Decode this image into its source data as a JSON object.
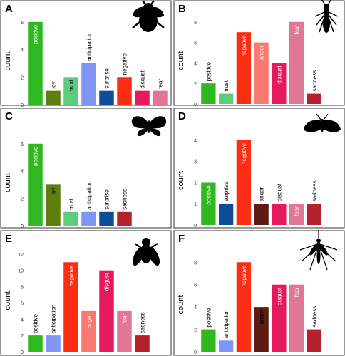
{
  "figure": {
    "ylabel": "count",
    "colors": {
      "positive": "#2fb81f",
      "joy": "#5c7f10",
      "trust": "#5ccd7c",
      "anticipation": "#7f96f2",
      "surprise": "#0e4d9a",
      "negative": "#fb2d12",
      "anger": "#fa7a70",
      "anger_dark": "#5f1a12",
      "disgust": "#e5195d",
      "fear": "#e07895",
      "sadness": "#b5222d"
    },
    "silhouettes": [
      "bee-icon",
      "wasp-icon",
      "butterfly-icon",
      "moth-icon",
      "fly-icon",
      "mosquito-icon"
    ]
  },
  "chart_data": [
    {
      "panel": "A",
      "type": "bar",
      "ylabel": "count",
      "ylim": [
        0,
        6.3
      ],
      "yticks": [
        0,
        2,
        4,
        6
      ],
      "silhouette": "bee-icon",
      "categories": [
        "positive",
        "joy",
        "trust",
        "anticipation",
        "surprise",
        "negative",
        "disgust",
        "fear"
      ],
      "values": [
        6,
        1,
        2,
        3,
        1,
        2,
        1,
        1
      ],
      "colors": [
        "#2fb81f",
        "#5c7f10",
        "#5ccd7c",
        "#7f96f2",
        "#0e4d9a",
        "#fb2d12",
        "#e5195d",
        "#e07895"
      ]
    },
    {
      "panel": "B",
      "type": "bar",
      "ylabel": "count",
      "ylim": [
        0,
        8.4
      ],
      "yticks": [
        0,
        2,
        4,
        6,
        8
      ],
      "silhouette": "wasp-icon",
      "categories": [
        "positive",
        "trust",
        "negative",
        "anger",
        "disgust",
        "fear",
        "sadness"
      ],
      "values": [
        2,
        1,
        7,
        6,
        4,
        8,
        1
      ],
      "colors": [
        "#2fb81f",
        "#5ccd7c",
        "#fb2d12",
        "#fa7a70",
        "#e5195d",
        "#e07895",
        "#b5222d"
      ]
    },
    {
      "panel": "C",
      "type": "bar",
      "ylabel": "count",
      "ylim": [
        0,
        6.3
      ],
      "yticks": [
        0,
        2,
        4,
        6
      ],
      "silhouette": "butterfly-icon",
      "categories": [
        "positive",
        "joy",
        "trust",
        "anticipation",
        "surprise",
        "sadness"
      ],
      "values": [
        6,
        3,
        1,
        1,
        1,
        1
      ],
      "colors": [
        "#2fb81f",
        "#5c7f10",
        "#5ccd7c",
        "#7f96f2",
        "#0e4d9a",
        "#b5222d"
      ]
    },
    {
      "panel": "D",
      "type": "bar",
      "ylabel": "count",
      "ylim": [
        0,
        4.2
      ],
      "yticks": [
        0,
        1,
        2,
        3,
        4
      ],
      "silhouette": "moth-icon",
      "categories": [
        "positive",
        "surprise",
        "negative",
        "anger",
        "disgust",
        "fear",
        "sadness"
      ],
      "values": [
        2,
        1,
        4,
        1,
        1,
        1,
        1
      ],
      "colors": [
        "#2fb81f",
        "#0e4d9a",
        "#fb2d12",
        "#5f1a12",
        "#e5195d",
        "#e07895",
        "#b5222d"
      ]
    },
    {
      "panel": "E",
      "type": "bar",
      "ylabel": "count",
      "ylim": [
        0,
        12.6
      ],
      "yticks": [
        0,
        2,
        4,
        6,
        8,
        10,
        12
      ],
      "silhouette": "fly-icon",
      "categories": [
        "positive",
        "anticipation",
        "negative",
        "anger",
        "disgust",
        "fear",
        "sadness"
      ],
      "values": [
        2,
        2,
        11,
        5,
        10,
        5,
        2
      ],
      "colors": [
        "#2fb81f",
        "#7f96f2",
        "#fb2d12",
        "#fa7a70",
        "#e5195d",
        "#e07895",
        "#b5222d"
      ]
    },
    {
      "panel": "F",
      "type": "bar",
      "ylabel": "count",
      "ylim": [
        0,
        8.4
      ],
      "yticks": [
        0,
        2,
        4,
        6,
        8
      ],
      "silhouette": "mosquito-icon",
      "categories": [
        "positive",
        "anticipation",
        "negative",
        "anger",
        "disgust",
        "fear",
        "sadness"
      ],
      "values": [
        2,
        1,
        8,
        4,
        6,
        6,
        2
      ],
      "colors": [
        "#2fb81f",
        "#7f96f2",
        "#fb2d12",
        "#5f1a12",
        "#e5195d",
        "#e07895",
        "#b5222d"
      ]
    }
  ]
}
